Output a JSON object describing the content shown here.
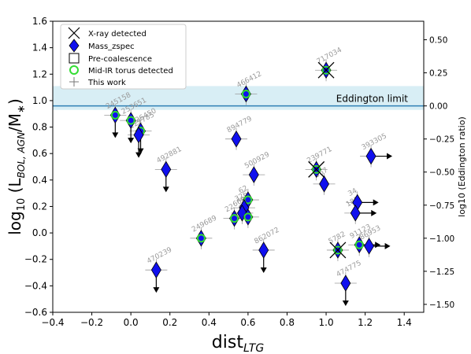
{
  "chart_data": {
    "type": "scatter",
    "xlabel_main": "dist",
    "xlabel_sub": "LTG",
    "ylabel_prefix": "log",
    "ylabel_base_sub": "10",
    "ylabel_open": " (L",
    "ylabel_l_sub": "BOL, AGN",
    "ylabel_mid": "/M",
    "ylabel_m_sub": "∗",
    "ylabel_close": ")",
    "y2label": "log10 (Eddington ratio)",
    "xlim": [
      -0.4,
      1.5
    ],
    "ylim": [
      -0.6,
      1.6
    ],
    "xticks": [
      "−0.4",
      "−0.2",
      "0.0",
      "0.2",
      "0.4",
      "0.6",
      "0.8",
      "1.0",
      "1.2",
      "1.4"
    ],
    "xtick_values": [
      -0.4,
      -0.2,
      0.0,
      0.2,
      0.4,
      0.6,
      0.8,
      1.0,
      1.2,
      1.4
    ],
    "yticks": [
      "−0.6",
      "−0.4",
      "−0.2",
      "0.0",
      "0.2",
      "0.4",
      "0.6",
      "0.8",
      "1.0",
      "1.2",
      "1.4",
      "1.6"
    ],
    "ytick_values": [
      -0.6,
      -0.4,
      -0.2,
      0.0,
      0.2,
      0.4,
      0.6,
      0.8,
      1.0,
      1.2,
      1.4,
      1.6
    ],
    "y2ticks": [
      "0.50",
      "0.25",
      "0.00",
      "−0.25",
      "−0.50",
      "−0.75",
      "−1.00",
      "−1.25",
      "−1.50"
    ],
    "y2tick_values": [
      0.5,
      0.25,
      0.0,
      -0.25,
      -0.5,
      -0.75,
      -1.0,
      -1.25,
      -1.5
    ],
    "y2_offset_from_y": 0.96,
    "eddington": {
      "label": "Eddington limit",
      "y": 0.96,
      "band": [
        0.93,
        1.11
      ]
    },
    "legend": {
      "placement": "upper-left",
      "entries": [
        "X-ray detected",
        "Mass_zspec",
        "Pre-coalescence",
        "Mid-IR torus detected",
        "This work"
      ]
    },
    "colors": {
      "diamond_fill": "#1010ee",
      "diamond_edge": "#000000",
      "torus_ring": "#33dd33",
      "eddington_line": "#2f80b5",
      "eddington_band": "#d8eef5",
      "point_label": "#9a9a9a",
      "error_bar": "#9a9a9a"
    },
    "points": [
      {
        "label": "245158",
        "x": -0.08,
        "y": 0.89,
        "xray": false,
        "torus": true,
        "upper": true,
        "right": false
      },
      {
        "label": "253651",
        "x": 0.0,
        "y": 0.85,
        "xray": false,
        "torus": true,
        "upper": true,
        "right": false
      },
      {
        "label": "226450",
        "x": 0.05,
        "y": 0.77,
        "xray": false,
        "torus": true,
        "upper": true,
        "right": false
      },
      {
        "label": "222785",
        "x": 0.04,
        "y": 0.74,
        "xray": false,
        "torus": false,
        "upper": true,
        "right": false
      },
      {
        "label": "492881",
        "x": 0.18,
        "y": 0.48,
        "xray": false,
        "torus": false,
        "upper": true,
        "right": false
      },
      {
        "label": "470239",
        "x": 0.13,
        "y": -0.28,
        "xray": false,
        "torus": false,
        "upper": true,
        "right": false
      },
      {
        "label": "249689",
        "x": 0.36,
        "y": -0.04,
        "xray": false,
        "torus": true,
        "upper": false,
        "right": false
      },
      {
        "label": "466412",
        "x": 0.59,
        "y": 1.05,
        "xray": false,
        "torus": true,
        "upper": false,
        "right": false
      },
      {
        "label": "894779",
        "x": 0.54,
        "y": 0.71,
        "xray": false,
        "torus": false,
        "upper": false,
        "right": false
      },
      {
        "label": "500929",
        "x": 0.63,
        "y": 0.44,
        "xray": false,
        "torus": false,
        "upper": false,
        "right": false
      },
      {
        "label": "62",
        "x": 0.6,
        "y": 0.25,
        "xray": false,
        "torus": true,
        "upper": false,
        "right": false
      },
      {
        "label": "326",
        "x": 0.58,
        "y": 0.19,
        "xray": false,
        "torus": false,
        "upper": false,
        "right": false
      },
      {
        "label": "6687",
        "x": 0.57,
        "y": 0.15,
        "xray": false,
        "torus": false,
        "upper": false,
        "right": false
      },
      {
        "label": "62",
        "x": 0.6,
        "y": 0.12,
        "xray": false,
        "torus": true,
        "upper": false,
        "right": false
      },
      {
        "label": "22",
        "x": 0.53,
        "y": 0.11,
        "xray": false,
        "torus": true,
        "upper": false,
        "right": false
      },
      {
        "label": "862072",
        "x": 0.68,
        "y": -0.13,
        "xray": false,
        "torus": false,
        "upper": true,
        "right": false
      },
      {
        "label": "717034",
        "x": 1.0,
        "y": 1.23,
        "xray": true,
        "torus": true,
        "upper": false,
        "right": false
      },
      {
        "label": "239771",
        "x": 0.95,
        "y": 0.48,
        "xray": true,
        "torus": true,
        "upper": false,
        "right": false
      },
      {
        "label": "367",
        "x": 0.99,
        "y": 0.37,
        "xray": false,
        "torus": false,
        "upper": false,
        "right": false
      },
      {
        "label": "393305",
        "x": 1.23,
        "y": 0.58,
        "xray": false,
        "torus": false,
        "upper": false,
        "right": true
      },
      {
        "label": "34",
        "x": 1.16,
        "y": 0.23,
        "xray": false,
        "torus": false,
        "upper": false,
        "right": true
      },
      {
        "label": "185",
        "x": 1.15,
        "y": 0.15,
        "xray": false,
        "torus": false,
        "upper": false,
        "right": true
      },
      {
        "label": "5782",
        "x": 1.06,
        "y": -0.13,
        "xray": true,
        "torus": true,
        "upper": false,
        "right": false
      },
      {
        "label": "91123",
        "x": 1.17,
        "y": -0.09,
        "xray": false,
        "torus": true,
        "upper": false,
        "right": true
      },
      {
        "label": "86953",
        "x": 1.22,
        "y": -0.1,
        "xray": false,
        "torus": false,
        "upper": false,
        "right": true
      },
      {
        "label": "474775",
        "x": 1.1,
        "y": -0.38,
        "xray": false,
        "torus": false,
        "upper": true,
        "right": false
      }
    ]
  }
}
